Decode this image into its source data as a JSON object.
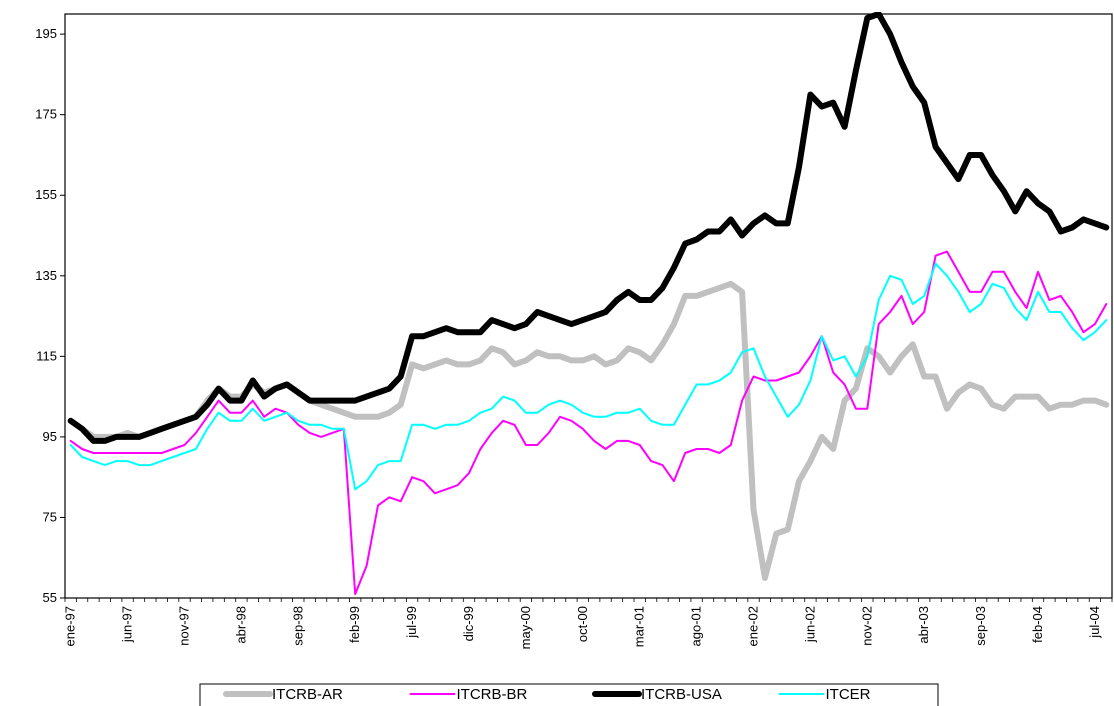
{
  "chart_data": {
    "type": "line",
    "title": "",
    "xlabel": "",
    "ylabel": "",
    "ylim": [
      55,
      200
    ],
    "yticks": [
      55,
      75,
      95,
      115,
      135,
      155,
      175,
      195
    ],
    "ytick_labels": [
      "55",
      "75",
      "95",
      "115",
      "135",
      "155",
      "175",
      "195"
    ],
    "grid": false,
    "legend_position": "bottom",
    "x": [
      "ene-97",
      "feb-97",
      "mar-97",
      "abr-97",
      "may-97",
      "jun-97",
      "jul-97",
      "ago-97",
      "sep-97",
      "oct-97",
      "nov-97",
      "dic-97",
      "ene-98",
      "feb-98",
      "mar-98",
      "abr-98",
      "may-98",
      "jun-98",
      "jul-98",
      "ago-98",
      "sep-98",
      "oct-98",
      "nov-98",
      "dic-98",
      "ene-99",
      "feb-99",
      "mar-99",
      "abr-99",
      "may-99",
      "jun-99",
      "jul-99",
      "ago-99",
      "sep-99",
      "oct-99",
      "nov-99",
      "dic-99",
      "ene-00",
      "feb-00",
      "mar-00",
      "abr-00",
      "may-00",
      "jun-00",
      "jul-00",
      "ago-00",
      "sep-00",
      "oct-00",
      "nov-00",
      "dic-00",
      "ene-01",
      "feb-01",
      "mar-01",
      "abr-01",
      "may-01",
      "jun-01",
      "jul-01",
      "ago-01",
      "sep-01",
      "oct-01",
      "nov-01",
      "dic-01",
      "ene-02",
      "feb-02",
      "mar-02",
      "abr-02",
      "may-02",
      "jun-02",
      "jul-02",
      "ago-02",
      "sep-02",
      "oct-02",
      "nov-02",
      "dic-02",
      "ene-03",
      "feb-03",
      "mar-03",
      "abr-03",
      "may-03",
      "jun-03",
      "jul-03",
      "ago-03",
      "sep-03",
      "oct-03",
      "nov-03",
      "dic-03",
      "ene-04",
      "feb-04",
      "mar-04",
      "abr-04",
      "may-04",
      "jun-04",
      "jul-04",
      "ago-04"
    ],
    "xtick_labels": [
      "ene-97",
      "jun-97",
      "nov-97",
      "abr-98",
      "sep-98",
      "feb-99",
      "jul-99",
      "dic-99",
      "may-00",
      "oct-00",
      "mar-01",
      "ago-01",
      "ene-02",
      "jun-02",
      "nov-02",
      "abr-03",
      "sep-03",
      "feb-04",
      "jul-04"
    ],
    "series": [
      {
        "name": "ITCRB-AR",
        "color": "#c0c0c0",
        "width": 6,
        "values": [
          99,
          97,
          95,
          95,
          95,
          96,
          95,
          96,
          97,
          98,
          99,
          100,
          104,
          107,
          105,
          105,
          108,
          106,
          107,
          108,
          106,
          104,
          103,
          102,
          101,
          100,
          100,
          100,
          101,
          103,
          113,
          112,
          113,
          114,
          113,
          113,
          114,
          117,
          116,
          113,
          114,
          116,
          115,
          115,
          114,
          114,
          115,
          113,
          114,
          117,
          116,
          114,
          118,
          123,
          130,
          130,
          131,
          132,
          133,
          131,
          77,
          60,
          71,
          72,
          84,
          89,
          95,
          92,
          104,
          107,
          117,
          115,
          111,
          115,
          118,
          110,
          110,
          102,
          106,
          108,
          107,
          103,
          102,
          105,
          105,
          105,
          102,
          103,
          103,
          104,
          104,
          103
        ]
      },
      {
        "name": "ITCRB-BR",
        "color": "#ff00ff",
        "width": 2,
        "values": [
          94,
          92,
          91,
          91,
          91,
          91,
          91,
          91,
          91,
          92,
          93,
          96,
          100,
          104,
          101,
          101,
          104,
          100,
          102,
          101,
          98,
          96,
          95,
          96,
          97,
          56,
          63,
          78,
          80,
          79,
          85,
          84,
          81,
          82,
          83,
          86,
          92,
          96,
          99,
          98,
          93,
          93,
          96,
          100,
          99,
          97,
          94,
          92,
          94,
          94,
          93,
          89,
          88,
          84,
          91,
          92,
          92,
          91,
          93,
          104,
          110,
          109,
          109,
          110,
          111,
          115,
          120,
          111,
          108,
          102,
          102,
          123,
          126,
          130,
          123,
          126,
          140,
          141,
          136,
          131,
          131,
          136,
          136,
          131,
          127,
          136,
          129,
          130,
          126,
          121,
          123,
          128
        ]
      },
      {
        "name": "ITCRB-USA",
        "color": "#000000",
        "width": 6,
        "values": [
          99,
          97,
          94,
          94,
          95,
          95,
          95,
          96,
          97,
          98,
          99,
          100,
          103,
          107,
          104,
          104,
          109,
          105,
          107,
          108,
          106,
          104,
          104,
          104,
          104,
          104,
          105,
          106,
          107,
          110,
          120,
          120,
          121,
          122,
          121,
          121,
          121,
          124,
          123,
          122,
          123,
          126,
          125,
          124,
          123,
          124,
          125,
          126,
          129,
          131,
          129,
          129,
          132,
          137,
          143,
          144,
          146,
          146,
          149,
          145,
          148,
          150,
          148,
          148,
          162,
          180,
          177,
          178,
          172,
          186,
          199,
          200,
          195,
          188,
          182,
          178,
          167,
          163,
          159,
          165,
          165,
          160,
          156,
          151,
          156,
          153,
          151,
          146,
          147,
          149,
          148,
          147
        ]
      },
      {
        "name": "ITCER",
        "color": "#00ffff",
        "width": 2,
        "values": [
          93,
          90,
          89,
          88,
          89,
          89,
          88,
          88,
          89,
          90,
          91,
          92,
          97,
          101,
          99,
          99,
          102,
          99,
          100,
          101,
          99,
          98,
          98,
          97,
          97,
          82,
          84,
          88,
          89,
          89,
          98,
          98,
          97,
          98,
          98,
          99,
          101,
          102,
          105,
          104,
          101,
          101,
          103,
          104,
          103,
          101,
          100,
          100,
          101,
          101,
          102,
          99,
          98,
          98,
          103,
          108,
          108,
          109,
          111,
          116,
          117,
          110,
          105,
          100,
          103,
          109,
          120,
          114,
          115,
          110,
          115,
          129,
          135,
          134,
          128,
          130,
          138,
          135,
          131,
          126,
          128,
          133,
          132,
          127,
          124,
          131,
          126,
          126,
          122,
          119,
          121,
          124
        ]
      }
    ]
  }
}
